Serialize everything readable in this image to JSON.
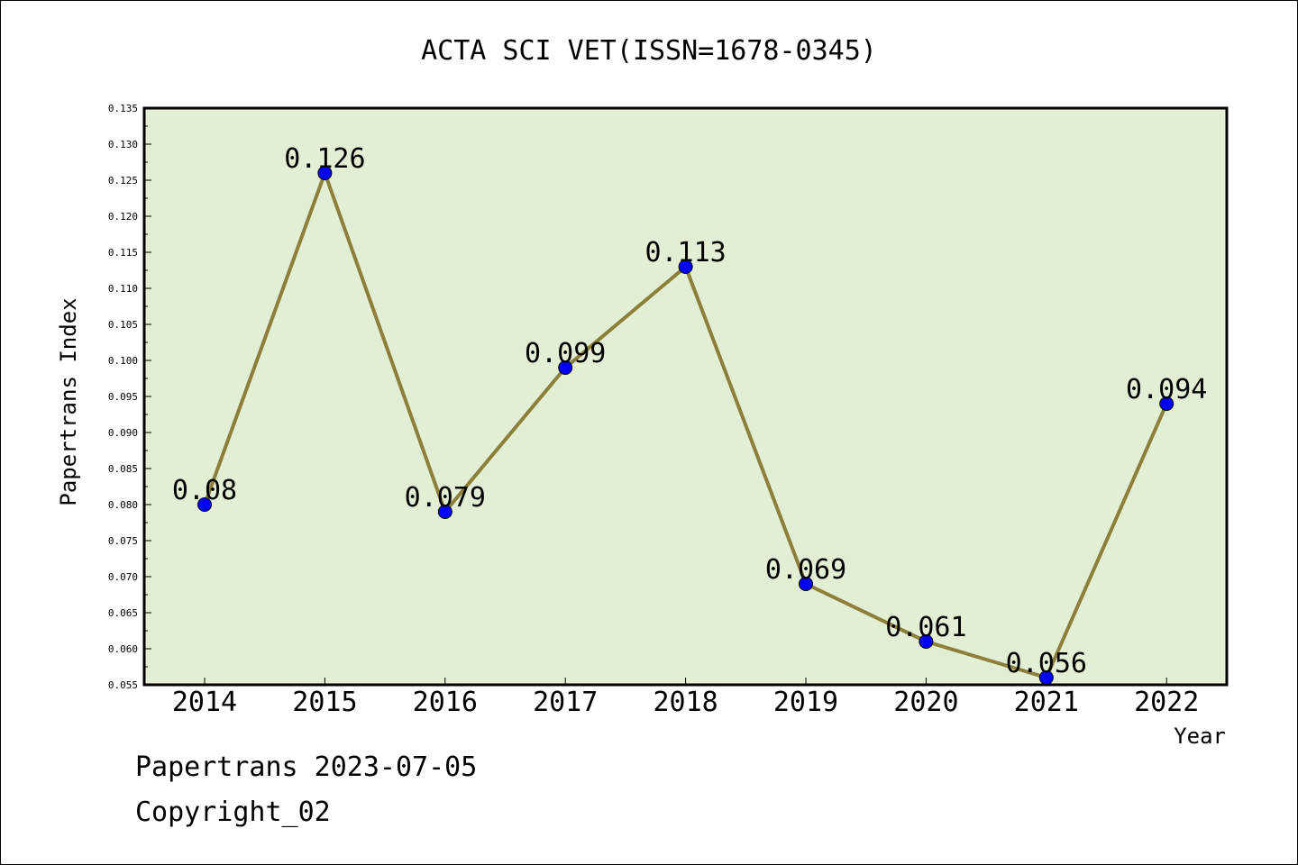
{
  "chart_data": {
    "type": "line",
    "title": "ACTA SCI VET(ISSN=1678-0345)",
    "xlabel": "Year",
    "ylabel": "Papertrans Index",
    "categories": [
      "2014",
      "2015",
      "2016",
      "2017",
      "2018",
      "2019",
      "2020",
      "2021",
      "2022"
    ],
    "values": [
      0.08,
      0.126,
      0.079,
      0.099,
      0.113,
      0.069,
      0.061,
      0.056,
      0.094
    ],
    "data_labels": [
      "0.08",
      "0.126",
      "0.079",
      "0.099",
      "0.113",
      "0.069",
      "0.061",
      "0.056",
      "0.094"
    ],
    "ylim": [
      0.055,
      0.135
    ],
    "yticks": [
      "0.055",
      "0.060",
      "0.065",
      "0.070",
      "0.075",
      "0.080",
      "0.085",
      "0.090",
      "0.095",
      "0.100",
      "0.105",
      "0.110",
      "0.115",
      "0.120",
      "0.125",
      "0.130",
      "0.135"
    ],
    "grid": false,
    "colors": {
      "plot_background": "#e2efd5",
      "line": "#8b7f3a",
      "marker": "#0000ff"
    }
  },
  "footer": {
    "line1": "Papertrans 2023-07-05",
    "line2": "Copyright_02"
  }
}
